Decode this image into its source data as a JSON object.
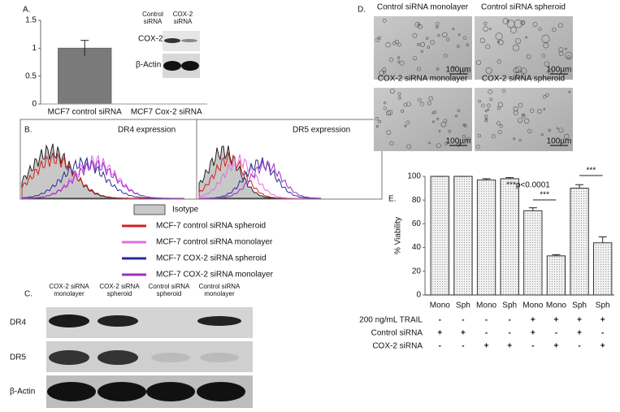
{
  "panel_labels": [
    "A.",
    "B.",
    "C.",
    "D.",
    "E."
  ],
  "chart_data": [
    {
      "type": "bar",
      "categories": [
        "MCF7 control siRNA",
        "MCF7 Cox-2 siRNA"
      ],
      "values": [
        1,
        0
      ],
      "errors": [
        0.14,
        0
      ],
      "color": "#7a7a7a",
      "ylim": [
        0,
        1.5
      ],
      "yticks": [
        0,
        0.5,
        1,
        1.5
      ]
    },
    {
      "type": "bar",
      "y_label": "% Viability",
      "categories": [
        "Mono",
        "Sph",
        "Mono",
        "Sph",
        "Mono",
        "Mono",
        "Sph",
        "Sph"
      ],
      "values": [
        100,
        100,
        97,
        98,
        71,
        33,
        90,
        44
      ],
      "errors": [
        0,
        0,
        1,
        1,
        2.5,
        1,
        3,
        5
      ],
      "color": "#e4e4e4",
      "ylim": [
        0,
        100
      ],
      "yticks": [
        0,
        20,
        40,
        60,
        80,
        100
      ],
      "annotations": [
        "***p<0.0001",
        "***",
        "***"
      ]
    }
  ],
  "blot_a": {
    "columns": [
      "Control siRNA",
      "COX-2 siRNA"
    ],
    "rows": [
      "COX-2",
      "β-Actin"
    ]
  },
  "flow": {
    "titles": [
      "DR4 expression",
      "DR5 expression"
    ],
    "legend": [
      {
        "name": "Isotype",
        "color": "#c8c8c8"
      },
      {
        "name": "MCF-7 control siRNA spheroid",
        "color": "#d42020"
      },
      {
        "name": "MCF-7 control siRNA monolayer",
        "color": "#e070e0"
      },
      {
        "name": "MCF-7 COX-2 siRNA spheroid",
        "color": "#2a2a9a"
      },
      {
        "name": "MCF-7 COX-2 siRNA monolayer",
        "color": "#9a30c0"
      }
    ]
  },
  "blot_c": {
    "columns": [
      "COX-2 siRNA monolayer",
      "COX-2 siRNA spheroid",
      "Control siRNA spheroid",
      "Control siRNA monolayer"
    ],
    "rows": [
      "DR4",
      "DR5",
      "β-Actin"
    ]
  },
  "micrographs": {
    "captions": [
      "Control siRNA monolayer",
      "Control siRNA spheroid",
      "COX-2 siRNA monolayer",
      "COX-2 siRNA spheroid"
    ],
    "scale": "100µm"
  },
  "conditions": [
    {
      "label": "200 ng/mL TRAIL",
      "signs": [
        "-",
        "-",
        "-",
        "-",
        "+",
        "+",
        "+",
        "+"
      ]
    },
    {
      "label": "Control siRNA",
      "signs": [
        "+",
        "+",
        "-",
        "-",
        "+",
        "-",
        "+",
        "-"
      ]
    },
    {
      "label": "COX-2 siRNA",
      "signs": [
        "-",
        "-",
        "+",
        "+",
        "-",
        "+",
        "-",
        "+"
      ]
    }
  ]
}
